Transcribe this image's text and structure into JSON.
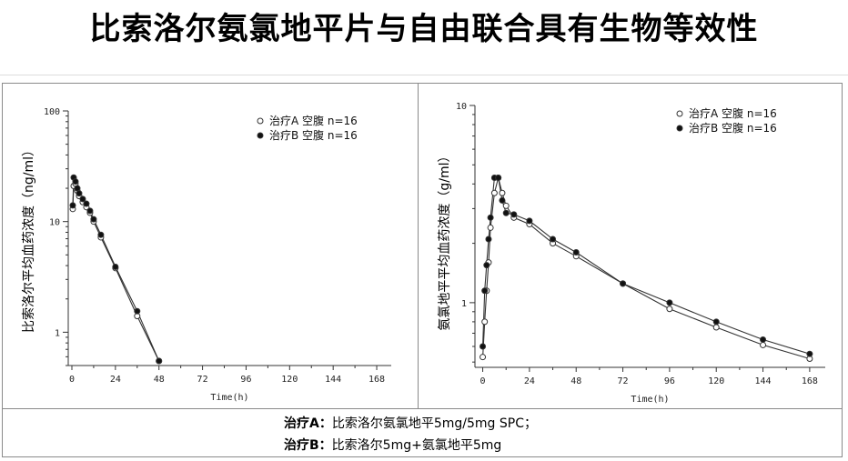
{
  "page": {
    "title": "比索洛尔氨氯地平片与自由联合具有生物等效性"
  },
  "notes": [
    {
      "label": "治疗A：",
      "text": "比索洛尔氨氯地平5mg/5mg SPC；"
    },
    {
      "label": "治疗B：",
      "text": "比索洛尔5mg+氨氯地平5mg"
    }
  ],
  "chart_data": [
    {
      "type": "line",
      "ylabel": "比索洛尔平均血药浓度（ng/ml）",
      "xlabel": "Time(h)",
      "yscale": "log",
      "ylim": [
        0.5,
        100
      ],
      "xlim": [
        -2,
        176
      ],
      "xticks": [
        0,
        24,
        48,
        72,
        96,
        120,
        144,
        168
      ],
      "yticks": [
        1,
        10,
        100
      ],
      "legend_position": "top-right",
      "series": [
        {
          "name": "治疗A  空腹  n=16",
          "marker": "open-circle",
          "x": [
            0.5,
            1,
            2,
            3,
            4,
            6,
            8,
            10,
            12,
            16,
            24,
            36,
            48
          ],
          "y": [
            13,
            21,
            22,
            19,
            17,
            15,
            13.5,
            12,
            10,
            7.2,
            3.8,
            1.4,
            0.55
          ]
        },
        {
          "name": "治疗B  空腹  n=16",
          "marker": "filled-circle",
          "x": [
            0.5,
            1,
            2,
            3,
            4,
            6,
            8,
            10,
            12,
            16,
            24,
            36,
            48
          ],
          "y": [
            14,
            25,
            23,
            20,
            18,
            16,
            14.5,
            12.5,
            10.5,
            7.6,
            3.9,
            1.55,
            0.55
          ]
        }
      ]
    },
    {
      "type": "line",
      "ylabel": "氨氯地平平均血药浓度（g/ml）",
      "xlabel": "Time(h)",
      "yscale": "log",
      "ylim": [
        0.47,
        10
      ],
      "xlim": [
        -4,
        176
      ],
      "xticks": [
        0,
        24,
        48,
        72,
        96,
        120,
        144,
        168
      ],
      "yticks": [
        1,
        10
      ],
      "legend_position": "top-right",
      "series": [
        {
          "name": "治疗A  空腹  n=16",
          "marker": "open-circle",
          "x": [
            0,
            1,
            2,
            3,
            4,
            6,
            8,
            10,
            12,
            16,
            24,
            36,
            48,
            72,
            96,
            120,
            144,
            168
          ],
          "y": [
            0.53,
            0.8,
            1.15,
            1.6,
            2.4,
            3.6,
            4.3,
            3.6,
            3.1,
            2.7,
            2.5,
            2.0,
            1.72,
            1.25,
            0.93,
            0.75,
            0.61,
            0.52
          ],
          "point_indices": [
            0,
            1,
            2,
            3,
            4,
            5,
            6,
            7,
            8,
            9,
            10,
            11,
            12,
            13,
            14,
            15,
            16,
            17
          ]
        },
        {
          "name": "治疗B  空腹  n=16",
          "marker": "filled-circle",
          "x": [
            0,
            1,
            2,
            3,
            4,
            6,
            8,
            10,
            12,
            16,
            24,
            36,
            48,
            72,
            96,
            120,
            144,
            168
          ],
          "y": [
            0.6,
            1.15,
            1.55,
            2.1,
            2.7,
            4.3,
            4.3,
            3.3,
            2.85,
            2.8,
            2.6,
            2.1,
            1.8,
            1.25,
            1.0,
            0.8,
            0.65,
            0.55
          ]
        }
      ]
    }
  ]
}
